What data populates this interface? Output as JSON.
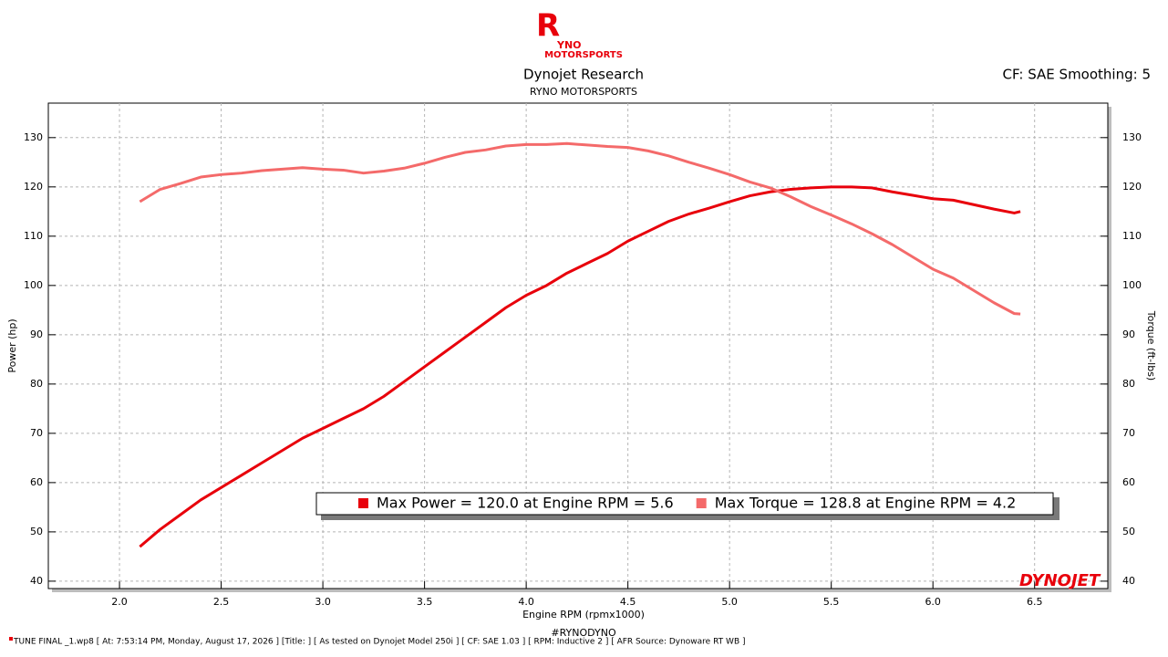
{
  "header": {
    "logo_mark": "R",
    "logo_top": "YNO",
    "logo_bottom": "MOTORSPORTS",
    "title": "Dynojet Research",
    "subtitle": "RYNO MOTORSPORTS",
    "settings": "CF: SAE Smoothing: 5"
  },
  "chart_data": {
    "type": "line",
    "x_label": "Engine RPM (rpmx1000)",
    "y_label": "Power (hp)",
    "y2_label": "Torque (ft-lbs)",
    "x": [
      2.1,
      2.2,
      2.3,
      2.4,
      2.5,
      2.6,
      2.7,
      2.8,
      2.9,
      3.0,
      3.1,
      3.2,
      3.3,
      3.4,
      3.5,
      3.6,
      3.7,
      3.8,
      3.9,
      4.0,
      4.1,
      4.2,
      4.3,
      4.4,
      4.5,
      4.6,
      4.7,
      4.8,
      4.9,
      5.0,
      5.1,
      5.2,
      5.3,
      5.4,
      5.5,
      5.6,
      5.7,
      5.8,
      5.9,
      6.0,
      6.1,
      6.2,
      6.3,
      6.4,
      6.43
    ],
    "series": [
      {
        "name": "Max Power = 120.0 at Engine RPM = 5.6",
        "color": "#e8000b",
        "axis": "y",
        "values": [
          47,
          50.5,
          53.5,
          56.5,
          59,
          61.5,
          64,
          66.5,
          69,
          71,
          73,
          75,
          77.5,
          80.5,
          83.5,
          86.5,
          89.5,
          92.5,
          95.5,
          98,
          100,
          102.5,
          104.5,
          106.5,
          109,
          111,
          113,
          114.5,
          115.7,
          117,
          118.2,
          119,
          119.5,
          119.8,
          120,
          120,
          119.8,
          119,
          118.3,
          117.6,
          117.3,
          116.4,
          115.5,
          114.7,
          115
        ]
      },
      {
        "name": "Max Torque = 128.8 at Engine RPM = 4.2",
        "color": "#f46a6a",
        "axis": "y2",
        "values": [
          117,
          119.5,
          120.7,
          122,
          122.5,
          122.8,
          123.3,
          123.6,
          123.9,
          123.6,
          123.4,
          122.8,
          123.2,
          123.8,
          124.8,
          126,
          127,
          127.5,
          128.3,
          128.6,
          128.6,
          128.8,
          128.5,
          128.2,
          128,
          127.3,
          126.3,
          125,
          123.8,
          122.5,
          121,
          119.8,
          118,
          116,
          114.3,
          112.5,
          110.5,
          108.3,
          105.8,
          103.3,
          101.5,
          99,
          96.5,
          94.3,
          94.2
        ]
      }
    ],
    "xlim": [
      1.65,
      6.86
    ],
    "xticks": [
      {
        "value": 2,
        "label": "2.0"
      },
      2.5,
      {
        "value": 3,
        "label": "3.0"
      },
      3.5,
      {
        "value": 4,
        "label": "4.0"
      },
      4.5,
      {
        "value": 5,
        "label": "5.0"
      },
      5.5,
      {
        "value": 6,
        "label": "6.0"
      },
      6.5
    ],
    "ylim": [
      38.5,
      137
    ],
    "yticks": [
      40,
      50,
      60,
      70,
      80,
      90,
      100,
      110,
      120,
      130
    ],
    "y2lim": [
      38.5,
      137
    ],
    "y2ticks": [
      40,
      50,
      60,
      70,
      80,
      90,
      100,
      110,
      120,
      130
    ],
    "grid": true
  },
  "footer": {
    "brand": "DYNOJET",
    "tag": "#RYNODYNO",
    "info": "TUNE FINAL _1.wp8 [ At:  7:53:14 PM, Monday, August 17, 2026 ] [Title: ]  [ As tested on Dynojet Model 250i ] [ CF: SAE  1.03 ] [ RPM: Inductive 2 ] [ AFR Source: Dynoware RT WB ]"
  }
}
